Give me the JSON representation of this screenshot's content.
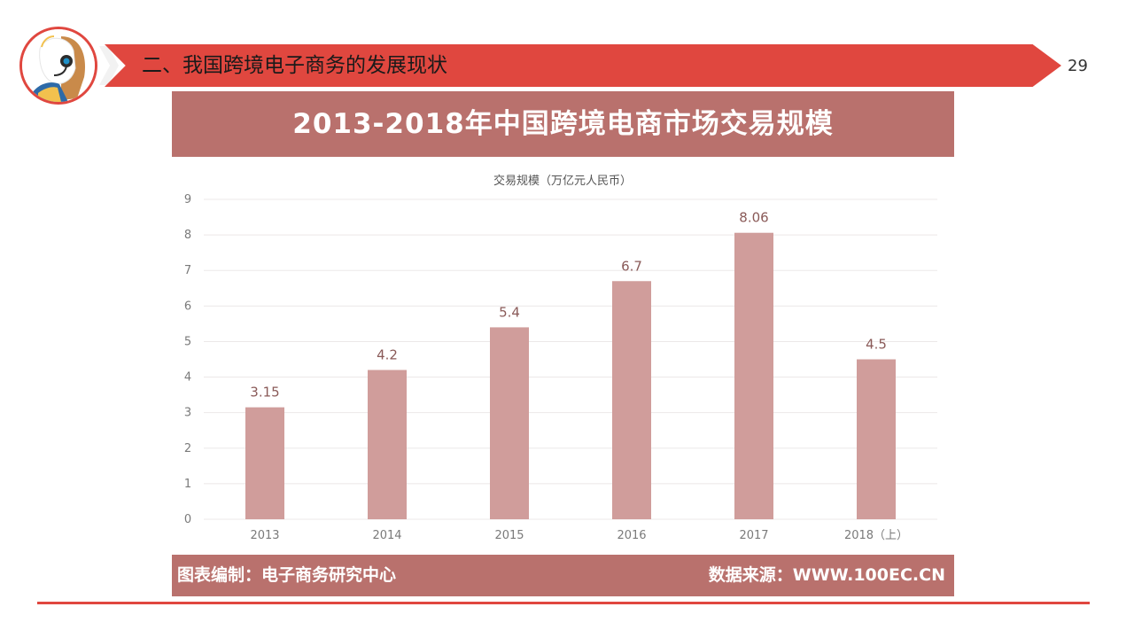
{
  "header": {
    "title": "二、我国跨境电子商务的发展现状",
    "page_number": "29"
  },
  "colors": {
    "accent": "#e0473f",
    "chart_banner": "#b9716d",
    "bar": "#d09d9b",
    "axis_text": "#7a7a7a",
    "label_text": "#8a5a58",
    "grid": "#ece8e8"
  },
  "chart_data": {
    "type": "bar",
    "title": "2013-2018年中国跨境电商市场交易规模",
    "legend": "交易规模（万亿元人民币）",
    "categories": [
      "2013",
      "2014",
      "2015",
      "2016",
      "2017",
      "2018（上）"
    ],
    "values": [
      3.15,
      4.2,
      5.4,
      6.7,
      8.06,
      4.5
    ],
    "data_labels": [
      "3.15",
      "4.2",
      "5.4",
      "6.7",
      "8.06",
      "4.5"
    ],
    "y_ticks": [
      "0",
      "1",
      "2",
      "3",
      "4",
      "5",
      "6",
      "7",
      "8",
      "9"
    ],
    "ylim": [
      0,
      9
    ],
    "grid": true,
    "footer_left": "图表编制：电子商务研究中心",
    "footer_right": "数据来源：WWW.100EC.CN"
  }
}
